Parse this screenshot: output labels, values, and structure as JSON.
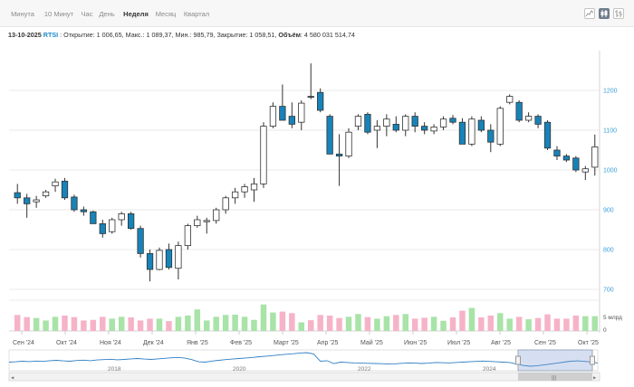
{
  "tabs": [
    {
      "label": "Минута",
      "active": false
    },
    {
      "label": "10 Минут",
      "active": false
    },
    {
      "label": "Час",
      "active": false
    },
    {
      "label": "День",
      "active": false
    },
    {
      "label": "Неделя",
      "active": true
    },
    {
      "label": "Месяц",
      "active": false
    },
    {
      "label": "Квартал",
      "active": false
    }
  ],
  "chart_type_buttons": [
    {
      "icon": "area-chart-icon",
      "active": false
    },
    {
      "icon": "candlestick-chart-icon",
      "active": true
    },
    {
      "icon": "bar-chart-icon",
      "active": false
    }
  ],
  "info": {
    "date": "13-10-2025",
    "ticker": "RTSI",
    "open_label": "Открытие:",
    "open": "1 006,65",
    "high_label": "Макс.:",
    "high": "1 089,37",
    "low_label": "Мин.:",
    "low": "985,79",
    "close_label": "Закрытие:",
    "close": "1 058,51",
    "volume_label": "Объём",
    "volume": "4 580 031 514,74"
  },
  "colors": {
    "up": "#ffffff",
    "down": "#1783b8",
    "vol_up": "#a8e3a8",
    "vol_down": "#f6b3c8",
    "axis_label": "#3a9fd8",
    "navigator_line": "#2f7fc4"
  },
  "chart_data": {
    "type": "candlestick",
    "price_axis": {
      "min": 700,
      "max": 1300,
      "ticks": [
        700,
        800,
        900,
        1000,
        1100,
        1200
      ]
    },
    "volume_axis": {
      "ticks": [
        "0",
        "5 млрд"
      ]
    },
    "x_labels": [
      "Сен '24",
      "Окт '24",
      "Ноя '24",
      "Дек '24",
      "Янв '25",
      "Фев '25",
      "Март '25",
      "Апр '25",
      "Май '25",
      "Июн '25",
      "Июл '25",
      "Авг '25",
      "Сен '25",
      "Окт '25"
    ],
    "ohlc": [
      [
        943,
        965,
        915,
        930
      ],
      [
        930,
        940,
        880,
        915
      ],
      [
        920,
        935,
        905,
        925
      ],
      [
        935,
        950,
        930,
        945
      ],
      [
        960,
        978,
        945,
        970
      ],
      [
        972,
        980,
        925,
        930
      ],
      [
        932,
        938,
        895,
        900
      ],
      [
        900,
        908,
        885,
        895
      ],
      [
        895,
        898,
        865,
        865
      ],
      [
        865,
        875,
        830,
        840
      ],
      [
        845,
        880,
        840,
        875
      ],
      [
        875,
        895,
        860,
        890
      ],
      [
        890,
        895,
        850,
        853
      ],
      [
        853,
        860,
        780,
        790
      ],
      [
        790,
        800,
        720,
        750
      ],
      [
        750,
        805,
        748,
        798
      ],
      [
        800,
        815,
        750,
        755
      ],
      [
        753,
        820,
        725,
        810
      ],
      [
        810,
        865,
        800,
        860
      ],
      [
        860,
        885,
        855,
        875
      ],
      [
        870,
        880,
        840,
        873
      ],
      [
        873,
        905,
        865,
        900
      ],
      [
        900,
        935,
        890,
        930
      ],
      [
        930,
        955,
        915,
        945
      ],
      [
        945,
        965,
        930,
        958
      ],
      [
        950,
        980,
        920,
        965
      ],
      [
        965,
        1120,
        955,
        1110
      ],
      [
        1110,
        1170,
        1105,
        1160
      ],
      [
        1160,
        1215,
        1130,
        1125
      ],
      [
        1135,
        1170,
        1105,
        1115
      ],
      [
        1120,
        1175,
        1100,
        1168
      ],
      [
        1185,
        1268,
        1178,
        1183
      ],
      [
        1195,
        1205,
        1145,
        1150
      ],
      [
        1135,
        1140,
        1040,
        1040
      ],
      [
        1040,
        1090,
        960,
        1035
      ],
      [
        1035,
        1105,
        1030,
        1095
      ],
      [
        1110,
        1140,
        1100,
        1135
      ],
      [
        1140,
        1145,
        1090,
        1095
      ],
      [
        1100,
        1125,
        1055,
        1110
      ],
      [
        1110,
        1140,
        1085,
        1128
      ],
      [
        1115,
        1135,
        1095,
        1100
      ],
      [
        1100,
        1140,
        1085,
        1135
      ],
      [
        1135,
        1145,
        1095,
        1110
      ],
      [
        1110,
        1120,
        1090,
        1100
      ],
      [
        1098,
        1115,
        1090,
        1108
      ],
      [
        1108,
        1135,
        1100,
        1128
      ],
      [
        1130,
        1138,
        1115,
        1120
      ],
      [
        1120,
        1130,
        1065,
        1065
      ],
      [
        1065,
        1135,
        1060,
        1128
      ],
      [
        1125,
        1135,
        1095,
        1100
      ],
      [
        1100,
        1115,
        1045,
        1070
      ],
      [
        1065,
        1160,
        1060,
        1155
      ],
      [
        1170,
        1190,
        1165,
        1185
      ],
      [
        1170,
        1175,
        1120,
        1125
      ],
      [
        1125,
        1145,
        1120,
        1135
      ],
      [
        1135,
        1140,
        1105,
        1115
      ],
      [
        1120,
        1125,
        1050,
        1055
      ],
      [
        1050,
        1060,
        1025,
        1035
      ],
      [
        1035,
        1040,
        1020,
        1025
      ],
      [
        1030,
        1035,
        995,
        1000
      ],
      [
        995,
        1010,
        975,
        1003
      ],
      [
        1007,
        1089,
        986,
        1058
      ]
    ],
    "volume_pct": [
      52,
      45,
      42,
      34,
      46,
      50,
      45,
      34,
      36,
      46,
      40,
      46,
      44,
      34,
      40,
      40,
      32,
      46,
      50,
      70,
      34,
      46,
      52,
      53,
      46,
      36,
      86,
      60,
      63,
      58,
      28,
      35,
      52,
      50,
      42,
      46,
      55,
      45,
      40,
      48,
      52,
      55,
      40,
      43,
      46,
      33,
      44,
      66,
      75,
      44,
      50,
      58,
      40,
      46,
      38,
      42,
      54,
      40,
      40,
      50,
      48,
      48
    ],
    "navigator": {
      "year_labels": [
        "2018",
        "2020",
        "2022",
        "2024"
      ],
      "series": [
        1100,
        1120,
        1150,
        1130,
        1160,
        1140,
        1180,
        1200,
        1170,
        1150,
        1190,
        1210,
        1180,
        1220,
        1240,
        1260,
        1230,
        1250,
        1280,
        1300,
        1270,
        1250,
        1280,
        1310,
        1340,
        1360,
        1320,
        1240,
        1120,
        1100,
        1160,
        1200,
        1240,
        1270,
        1300,
        1330,
        1360,
        1400,
        1430,
        1460,
        1500,
        1530,
        1560,
        1600,
        1620,
        1550,
        1150,
        1180,
        1020,
        1100,
        1080,
        1060,
        1050,
        1040,
        1030,
        1020,
        1000,
        1010,
        1040,
        1060,
        1050,
        1030,
        1050,
        1080,
        1070,
        1060,
        1080,
        1100,
        1120,
        1140,
        1160,
        1140,
        1120,
        1100,
        1080,
        1000,
        920,
        880,
        900,
        950,
        1000,
        1050,
        1100,
        1150,
        1170,
        1140,
        1110,
        1060
      ]
    }
  }
}
